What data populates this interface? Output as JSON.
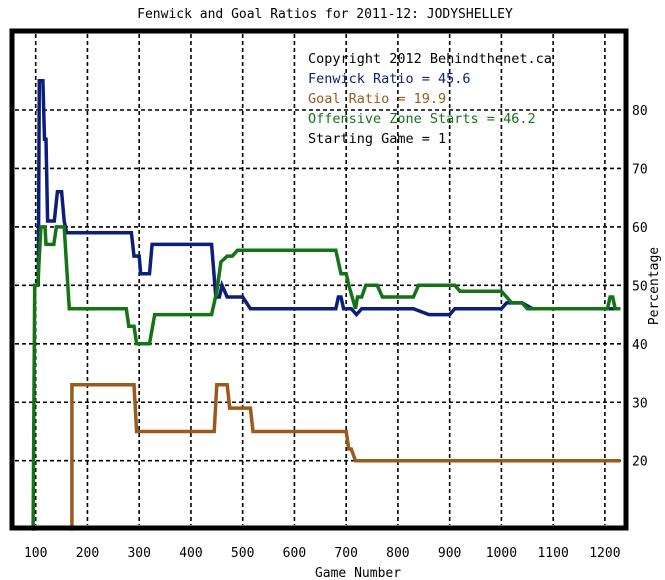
{
  "chart_data": {
    "type": "line",
    "title": "Fenwick and Goal Ratios for 2011-12: JODYSHELLEY",
    "xlabel": "Game Number",
    "ylabel": "Percentage",
    "xlim": [
      60,
      1235
    ],
    "ylim": [
      9,
      93
    ],
    "x_ticks": [
      100,
      200,
      300,
      400,
      500,
      600,
      700,
      800,
      900,
      1000,
      1100,
      1200
    ],
    "y_ticks": [
      20,
      30,
      40,
      50,
      60,
      70,
      80
    ],
    "grid": true,
    "annotations": [
      {
        "text": "Copyright 2012 Behindthenet.ca",
        "color": "#000000"
      },
      {
        "text": "Fenwick Ratio = 45.6",
        "color": "#0b1f7a"
      },
      {
        "text": "Goal Ratio = 19.9",
        "color": "#9a5a1c"
      },
      {
        "text": "Offensive Zone Starts = 46.2",
        "color": "#167216"
      },
      {
        "text": "Starting Game = 1",
        "color": "#000000"
      }
    ],
    "series": [
      {
        "name": "Fenwick Ratio",
        "color": "#0b1f7a",
        "points": [
          [
            105,
            50
          ],
          [
            107,
            85
          ],
          [
            114,
            85
          ],
          [
            117,
            75
          ],
          [
            120,
            75
          ],
          [
            123,
            61
          ],
          [
            130,
            61
          ],
          [
            136,
            61
          ],
          [
            142,
            66
          ],
          [
            150,
            66
          ],
          [
            155,
            61
          ],
          [
            160,
            59
          ],
          [
            170,
            59
          ],
          [
            180,
            59
          ],
          [
            200,
            59
          ],
          [
            230,
            59
          ],
          [
            285,
            59
          ],
          [
            290,
            55
          ],
          [
            300,
            55
          ],
          [
            303,
            52
          ],
          [
            320,
            52
          ],
          [
            325,
            57
          ],
          [
            350,
            57
          ],
          [
            400,
            57
          ],
          [
            440,
            57
          ],
          [
            448,
            48
          ],
          [
            455,
            48
          ],
          [
            460,
            50
          ],
          [
            470,
            48
          ],
          [
            500,
            48
          ],
          [
            515,
            46
          ],
          [
            540,
            46
          ],
          [
            600,
            46
          ],
          [
            680,
            46
          ],
          [
            685,
            48
          ],
          [
            690,
            48
          ],
          [
            695,
            46
          ],
          [
            710,
            46
          ],
          [
            720,
            45
          ],
          [
            730,
            46
          ],
          [
            780,
            46
          ],
          [
            830,
            46
          ],
          [
            860,
            45
          ],
          [
            900,
            45
          ],
          [
            910,
            46
          ],
          [
            1000,
            46
          ],
          [
            1010,
            47
          ],
          [
            1040,
            47
          ],
          [
            1060,
            46
          ],
          [
            1200,
            46
          ],
          [
            1230,
            46
          ]
        ]
      },
      {
        "name": "Goal Ratio",
        "color": "#9a5a1c",
        "points": [
          [
            170,
            8
          ],
          [
            170,
            33
          ],
          [
            175,
            33
          ],
          [
            200,
            33
          ],
          [
            285,
            33
          ],
          [
            290,
            33
          ],
          [
            295,
            25
          ],
          [
            400,
            25
          ],
          [
            445,
            25
          ],
          [
            450,
            33
          ],
          [
            470,
            33
          ],
          [
            475,
            29
          ],
          [
            500,
            29
          ],
          [
            515,
            29
          ],
          [
            520,
            25
          ],
          [
            700,
            25
          ],
          [
            705,
            22
          ],
          [
            710,
            22
          ],
          [
            718,
            20
          ],
          [
            1230,
            20
          ]
        ]
      },
      {
        "name": "Offensive Zone Starts",
        "color": "#167216",
        "points": [
          [
            95,
            8
          ],
          [
            98,
            50
          ],
          [
            104,
            50
          ],
          [
            110,
            60
          ],
          [
            118,
            60
          ],
          [
            120,
            57
          ],
          [
            135,
            57
          ],
          [
            140,
            60
          ],
          [
            155,
            60
          ],
          [
            160,
            53
          ],
          [
            165,
            46
          ],
          [
            180,
            46
          ],
          [
            200,
            46
          ],
          [
            260,
            46
          ],
          [
            275,
            46
          ],
          [
            280,
            43
          ],
          [
            290,
            43
          ],
          [
            295,
            40
          ],
          [
            320,
            40
          ],
          [
            330,
            45
          ],
          [
            360,
            45
          ],
          [
            400,
            45
          ],
          [
            440,
            45
          ],
          [
            450,
            49
          ],
          [
            458,
            54
          ],
          [
            470,
            55
          ],
          [
            480,
            55
          ],
          [
            490,
            56
          ],
          [
            540,
            56
          ],
          [
            600,
            56
          ],
          [
            640,
            56
          ],
          [
            680,
            56
          ],
          [
            690,
            52
          ],
          [
            700,
            52
          ],
          [
            705,
            50
          ],
          [
            718,
            46
          ],
          [
            722,
            48
          ],
          [
            730,
            48
          ],
          [
            738,
            50
          ],
          [
            760,
            50
          ],
          [
            770,
            48
          ],
          [
            790,
            48
          ],
          [
            810,
            48
          ],
          [
            830,
            48
          ],
          [
            840,
            50
          ],
          [
            860,
            50
          ],
          [
            890,
            50
          ],
          [
            910,
            50
          ],
          [
            920,
            49
          ],
          [
            980,
            49
          ],
          [
            1000,
            49
          ],
          [
            1010,
            48
          ],
          [
            1020,
            47
          ],
          [
            1040,
            47
          ],
          [
            1050,
            46
          ],
          [
            1100,
            46
          ],
          [
            1150,
            46
          ],
          [
            1205,
            46
          ],
          [
            1210,
            48
          ],
          [
            1215,
            48
          ],
          [
            1220,
            46
          ],
          [
            1230,
            46
          ]
        ]
      }
    ]
  }
}
